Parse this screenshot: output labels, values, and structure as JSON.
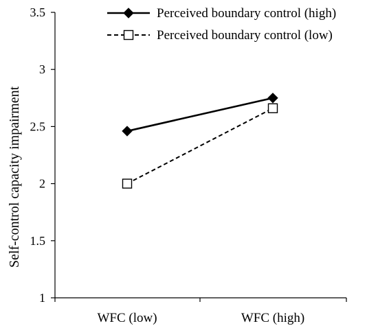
{
  "chart_data": {
    "type": "line",
    "title": "",
    "xlabel": "",
    "ylabel": "Self-control capacity impairment",
    "categories": [
      "WFC (low)",
      "WFC (high)"
    ],
    "ylim": [
      1,
      3.5
    ],
    "yticks": [
      1,
      1.5,
      2,
      2.5,
      3,
      3.5
    ],
    "ytick_labels": [
      "1",
      "1.5",
      "2",
      "2.5",
      "3",
      "3.5"
    ],
    "grid": false,
    "legend_position": "top",
    "series": [
      {
        "name": "Perceived boundary control (high)",
        "values": [
          2.46,
          2.75
        ],
        "line_style": "solid",
        "marker": "filled-diamond",
        "color": "#000000"
      },
      {
        "name": "Perceived boundary control (low)",
        "values": [
          2.0,
          2.66
        ],
        "line_style": "dashed",
        "marker": "open-square",
        "color": "#000000"
      }
    ]
  }
}
